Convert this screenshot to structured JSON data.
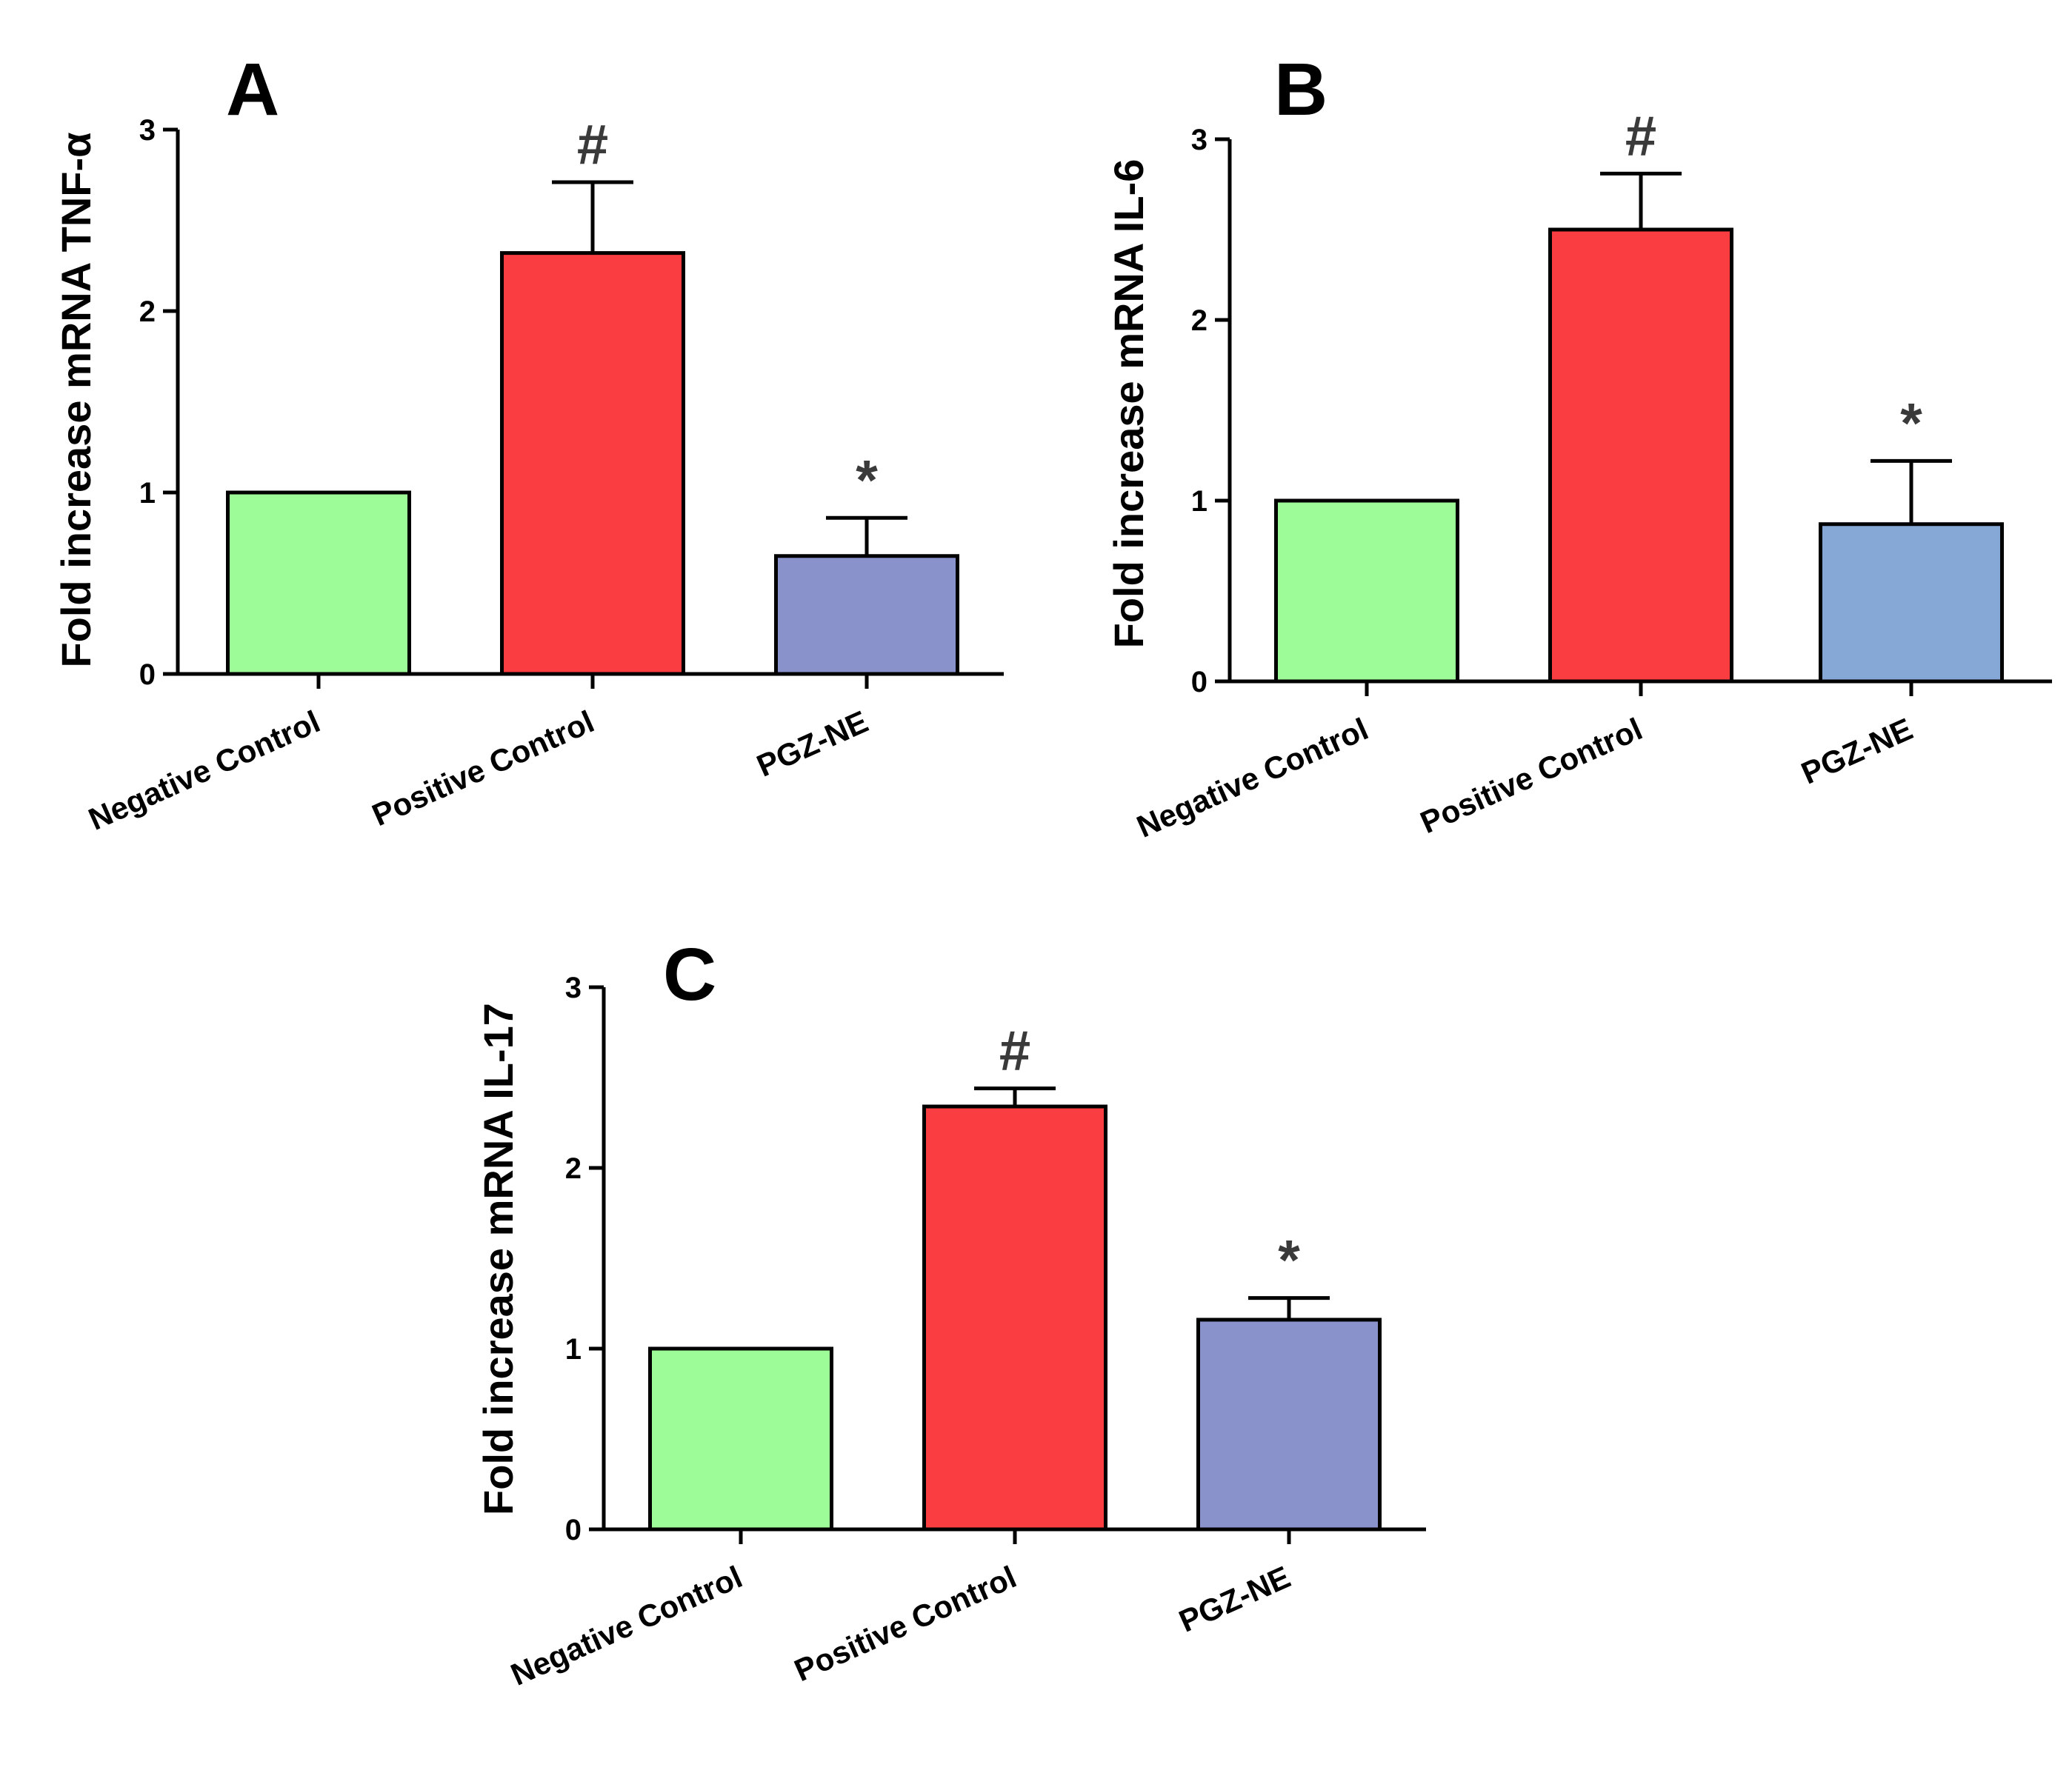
{
  "chart_data": [
    {
      "type": "bar",
      "panel_label": "A",
      "ylabel": "Fold increase mRNA TNF-α",
      "categories": [
        "Negative Control",
        "Positive Control",
        "PGZ-NE"
      ],
      "values": [
        1.0,
        2.32,
        0.65
      ],
      "errors": [
        0,
        0.39,
        0.21
      ],
      "annotations": [
        "",
        "#",
        "*"
      ],
      "colors": [
        "#9efc98",
        "#f93d41",
        "#8a92cc"
      ],
      "ylim": [
        0,
        3
      ],
      "yticks": [
        "0",
        "1",
        "2",
        "3"
      ]
    },
    {
      "type": "bar",
      "panel_label": "B",
      "ylabel": "Fold increase mRNA IL-6",
      "categories": [
        "Negative Control",
        "Positive Control",
        "PGZ-NE"
      ],
      "values": [
        1.0,
        2.5,
        0.87
      ],
      "errors": [
        0,
        0.31,
        0.35
      ],
      "annotations": [
        "",
        "#",
        "*"
      ],
      "colors": [
        "#9efc98",
        "#f93d41",
        "#86a8d6"
      ],
      "ylim": [
        0,
        3
      ],
      "yticks": [
        "0",
        "1",
        "2",
        "3"
      ]
    },
    {
      "type": "bar",
      "panel_label": "C",
      "ylabel": "Fold increase mRNA IL-17",
      "categories": [
        "Negative Control",
        "Positive Control",
        "PGZ-NE"
      ],
      "values": [
        1.0,
        2.34,
        1.16
      ],
      "errors": [
        0,
        0.1,
        0.12
      ],
      "annotations": [
        "",
        "#",
        "*"
      ],
      "colors": [
        "#9efc98",
        "#f93d41",
        "#8a92cc"
      ],
      "ylim": [
        0,
        3
      ],
      "yticks": [
        "0",
        "1",
        "2",
        "3"
      ]
    }
  ]
}
